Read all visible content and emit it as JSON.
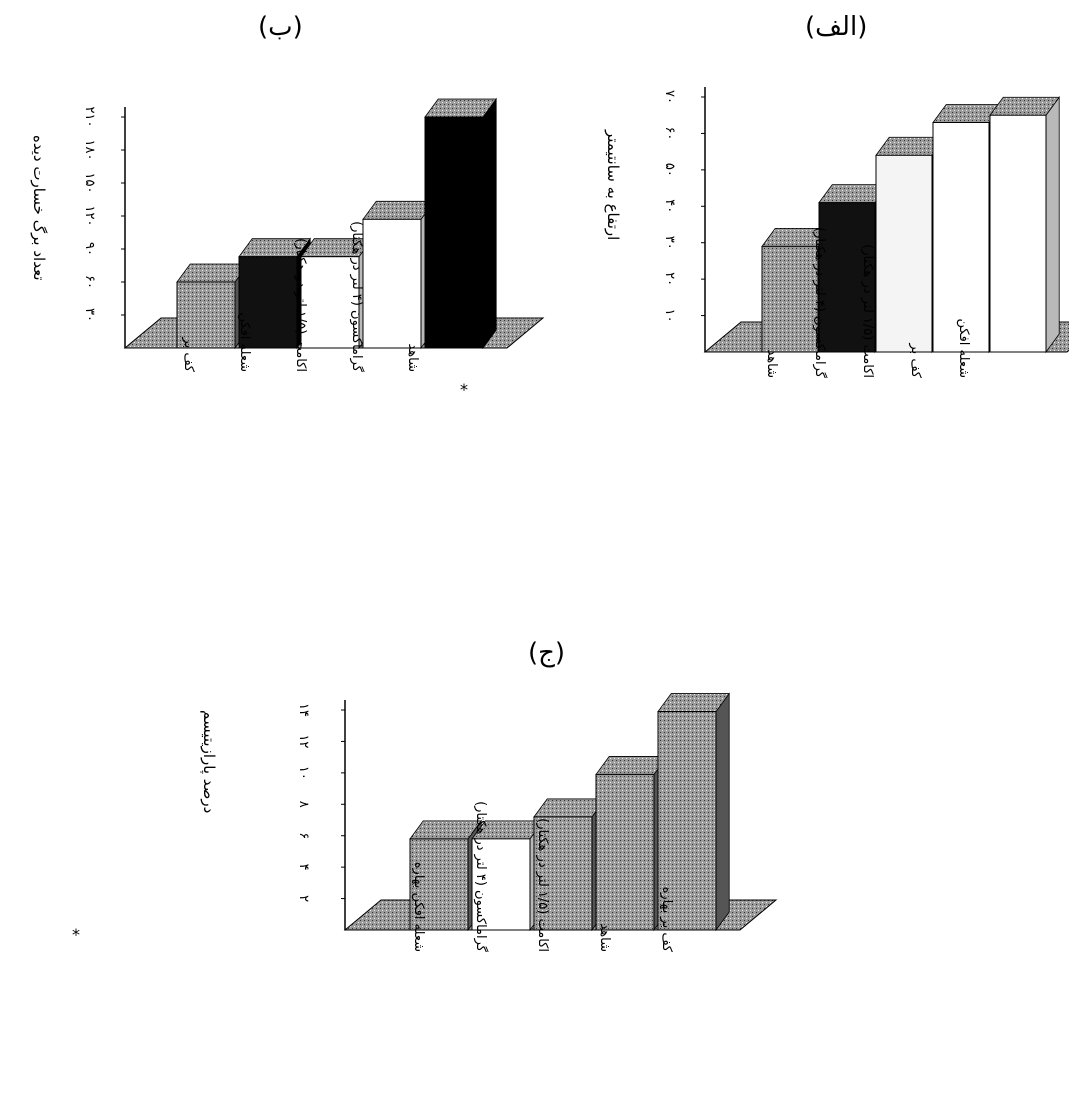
{
  "panels": {
    "a": {
      "label": "(الف)"
    },
    "b": {
      "label": "(ب)"
    },
    "c": {
      "label": "(ج)"
    }
  },
  "chart_data": [
    {
      "id": "a",
      "type": "bar",
      "title": "(الف)",
      "ylabel": "ارتفاع به سانتیمتر",
      "yticks": [
        "۱۰",
        "۲۰",
        "۳۰",
        "۴۰",
        "۵۰",
        "۶۰",
        "۷۰"
      ],
      "ytick_values": [
        10,
        20,
        30,
        40,
        50,
        60,
        70
      ],
      "ylim": [
        0,
        70
      ],
      "categories": [
        "شاهد",
        "گراماکسون (۴ لتر در هکتار)",
        "اکامت (۱/۵ لتر در هکتار)",
        "کف بر",
        "شعله افکن"
      ],
      "values": [
        29,
        41,
        54,
        63,
        65
      ],
      "colors": [
        "#b8b8b8",
        "#111111",
        "#f4f4f4",
        "#ffffff",
        "#ffffff"
      ]
    },
    {
      "id": "b",
      "type": "bar",
      "title": "(ب)",
      "ylabel": "تعداد برگ خسارت دیده",
      "yticks": [
        "۳۰",
        "۶۰",
        "۹۰",
        "۱۲۰",
        "۱۵۰",
        "۱۸۰",
        "۲۱۰"
      ],
      "ytick_values": [
        30,
        60,
        90,
        120,
        150,
        180,
        210
      ],
      "ylim": [
        0,
        210
      ],
      "categories": [
        "کف بر",
        "شعله افکن",
        "اکامت (۱/۵ لتر در هکتار)",
        "گراماکسون (۴ لتر در هکتار)",
        "شاهد"
      ],
      "values": [
        60,
        83,
        83,
        117,
        210
      ],
      "colors": [
        "#b8b8b8",
        "#111111",
        "#ffffff",
        "#ffffff",
        "#000000"
      ],
      "marker": "*"
    },
    {
      "id": "c",
      "type": "bar",
      "title": "(ج)",
      "ylabel": "درصد پارازیتیسم",
      "yticks": [
        "۲",
        "۴",
        "۶",
        "۸",
        "۱۰",
        "۱۲",
        "۱۴"
      ],
      "ytick_values": [
        2,
        4,
        6,
        8,
        10,
        12,
        14
      ],
      "ylim": [
        0,
        14
      ],
      "categories": [
        "شعله افکن بهاره",
        "گراماکسون (۴ لتر در هکتار)",
        "اکامت (۱/۵ لتر در هکتار)",
        "شاهد",
        "کف بر بهاره"
      ],
      "values": [
        5.8,
        5.8,
        7.2,
        9.9,
        13.9
      ],
      "colors": [
        "#c8c8c8",
        "#ffffff",
        "#c8c8c8",
        "#c8c8c8",
        "#c8c8c8"
      ],
      "marker": "*"
    }
  ]
}
